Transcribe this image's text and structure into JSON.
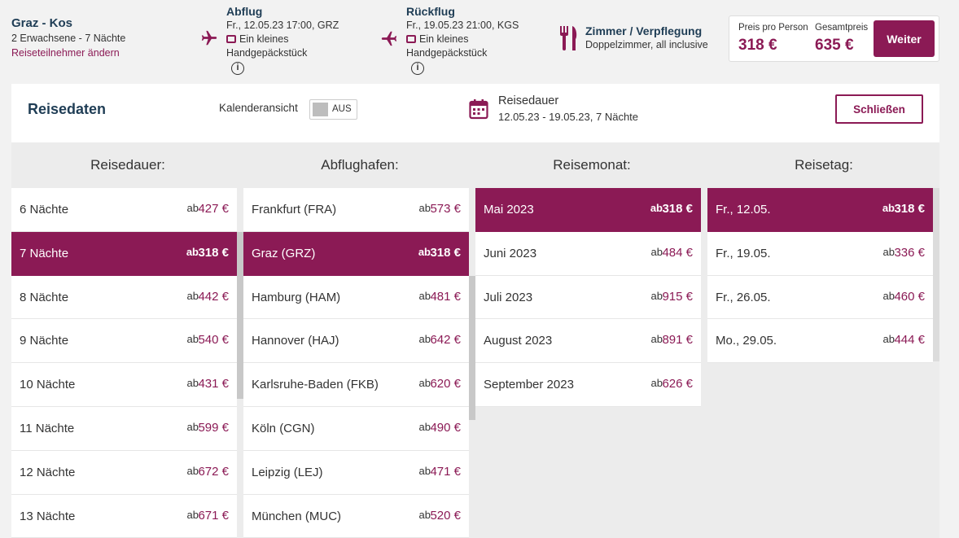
{
  "header": {
    "trip_title": "Graz - Kos",
    "trip_sub": "2 Erwachsene - 7 Nächte",
    "trip_link": "Reiseteilnehmer ändern",
    "outbound": {
      "head": "Abflug",
      "line1": "Fr., 12.05.23 17:00, GRZ",
      "line2": "Ein kleines",
      "line3": "Handgepäckstück"
    },
    "return": {
      "head": "Rückflug",
      "line1": "Fr., 19.05.23 21:00, KGS",
      "line2": "Ein kleines",
      "line3": "Handgepäckstück"
    },
    "room": {
      "head": "Zimmer / Verpflegung",
      "line": "Doppelzimmer, all inclusive"
    },
    "price": {
      "per_person_label": "Preis pro Person",
      "per_person_value": "318 €",
      "total_label": "Gesamtpreis",
      "total_value": "635 €",
      "button": "Weiter"
    }
  },
  "panel": {
    "title": "Reisedaten",
    "calendar_label": "Kalenderansicht",
    "toggle_text": "AUS",
    "duration_title": "Reisedauer",
    "duration_dates": "12.05.23 - 19.05.23,  7 Nächte",
    "close_button": "Schließen"
  },
  "columns": [
    {
      "heading": "Reisedauer:",
      "items": [
        {
          "name": "6 Nächte",
          "ab": "ab",
          "price": "427 €",
          "selected": false
        },
        {
          "name": "7 Nächte",
          "ab": "ab",
          "price": "318 €",
          "selected": true
        },
        {
          "name": "8 Nächte",
          "ab": "ab",
          "price": "442 €",
          "selected": false
        },
        {
          "name": "9 Nächte",
          "ab": "ab",
          "price": "540 €",
          "selected": false
        },
        {
          "name": "10 Nächte",
          "ab": "ab",
          "price": "431 €",
          "selected": false
        },
        {
          "name": "11 Nächte",
          "ab": "ab",
          "price": "599 €",
          "selected": false
        },
        {
          "name": "12 Nächte",
          "ab": "ab",
          "price": "672 €",
          "selected": false
        },
        {
          "name": "13 Nächte",
          "ab": "ab",
          "price": "671 €",
          "selected": false
        }
      ]
    },
    {
      "heading": "Abflughafen:",
      "items": [
        {
          "name": "Frankfurt (FRA)",
          "ab": "ab",
          "price": "573 €",
          "selected": false
        },
        {
          "name": "Graz (GRZ)",
          "ab": "ab",
          "price": "318 €",
          "selected": true
        },
        {
          "name": "Hamburg (HAM)",
          "ab": "ab",
          "price": "481 €",
          "selected": false
        },
        {
          "name": "Hannover (HAJ)",
          "ab": "ab",
          "price": "642 €",
          "selected": false
        },
        {
          "name": "Karlsruhe-Baden (FKB)",
          "ab": "ab",
          "price": "620 €",
          "selected": false
        },
        {
          "name": "Köln (CGN)",
          "ab": "ab",
          "price": "490 €",
          "selected": false
        },
        {
          "name": "Leipzig (LEJ)",
          "ab": "ab",
          "price": "471 €",
          "selected": false
        },
        {
          "name": "München (MUC)",
          "ab": "ab",
          "price": "520 €",
          "selected": false
        }
      ]
    },
    {
      "heading": "Reisemonat:",
      "items": [
        {
          "name": "Mai 2023",
          "ab": "ab",
          "price": "318 €",
          "selected": true
        },
        {
          "name": "Juni 2023",
          "ab": "ab",
          "price": "484 €",
          "selected": false
        },
        {
          "name": "Juli 2023",
          "ab": "ab",
          "price": "915 €",
          "selected": false
        },
        {
          "name": "August 2023",
          "ab": "ab",
          "price": "891 €",
          "selected": false
        },
        {
          "name": "September 2023",
          "ab": "ab",
          "price": "626 €",
          "selected": false
        }
      ]
    },
    {
      "heading": "Reisetag:",
      "items": [
        {
          "name": "Fr., 12.05.",
          "ab": "ab",
          "price": "318 €",
          "selected": true
        },
        {
          "name": "Fr., 19.05.",
          "ab": "ab",
          "price": "336 €",
          "selected": false
        },
        {
          "name": "Fr., 26.05.",
          "ab": "ab",
          "price": "460 €",
          "selected": false
        },
        {
          "name": "Mo., 29.05.",
          "ab": "ab",
          "price": "444 €",
          "selected": false
        }
      ]
    }
  ],
  "colors": {
    "accent": "#8b1a55",
    "heading": "#1f3d55"
  }
}
